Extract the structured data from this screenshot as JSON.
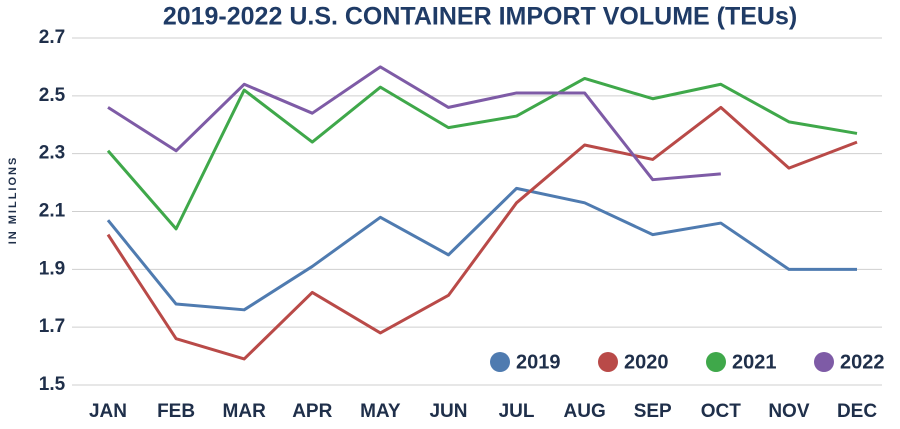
{
  "chart_data": {
    "type": "line",
    "title": "2019-2022 U.S. CONTAINER IMPORT VOLUME (TEUs)",
    "y_label": "IN MILLIONS",
    "categories": [
      "JAN",
      "FEB",
      "MAR",
      "APR",
      "MAY",
      "JUN",
      "JUL",
      "AUG",
      "SEP",
      "OCT",
      "NOV",
      "DEC"
    ],
    "series": [
      {
        "name": "2019",
        "color": "#4f7bb0",
        "values": [
          2.07,
          1.78,
          1.76,
          1.91,
          2.08,
          1.95,
          2.18,
          2.13,
          2.02,
          2.06,
          1.9,
          1.9
        ]
      },
      {
        "name": "2020",
        "color": "#b94a48",
        "values": [
          2.02,
          1.66,
          1.59,
          1.82,
          1.68,
          1.81,
          2.13,
          2.33,
          2.28,
          2.46,
          2.25,
          2.34
        ]
      },
      {
        "name": "2021",
        "color": "#3fa84a",
        "values": [
          2.31,
          2.04,
          2.52,
          2.34,
          2.53,
          2.39,
          2.43,
          2.56,
          2.49,
          2.54,
          2.41,
          2.37
        ]
      },
      {
        "name": "2022",
        "color": "#7e5ba6",
        "values": [
          2.46,
          2.31,
          2.54,
          2.44,
          2.6,
          2.46,
          2.51,
          2.51,
          2.21,
          2.23,
          null,
          null
        ]
      }
    ],
    "ylim": [
      1.5,
      2.7
    ],
    "yticks": [
      1.5,
      1.7,
      1.9,
      2.1,
      2.3,
      2.5,
      2.7
    ],
    "grid": true,
    "legend": "bottom-right"
  }
}
